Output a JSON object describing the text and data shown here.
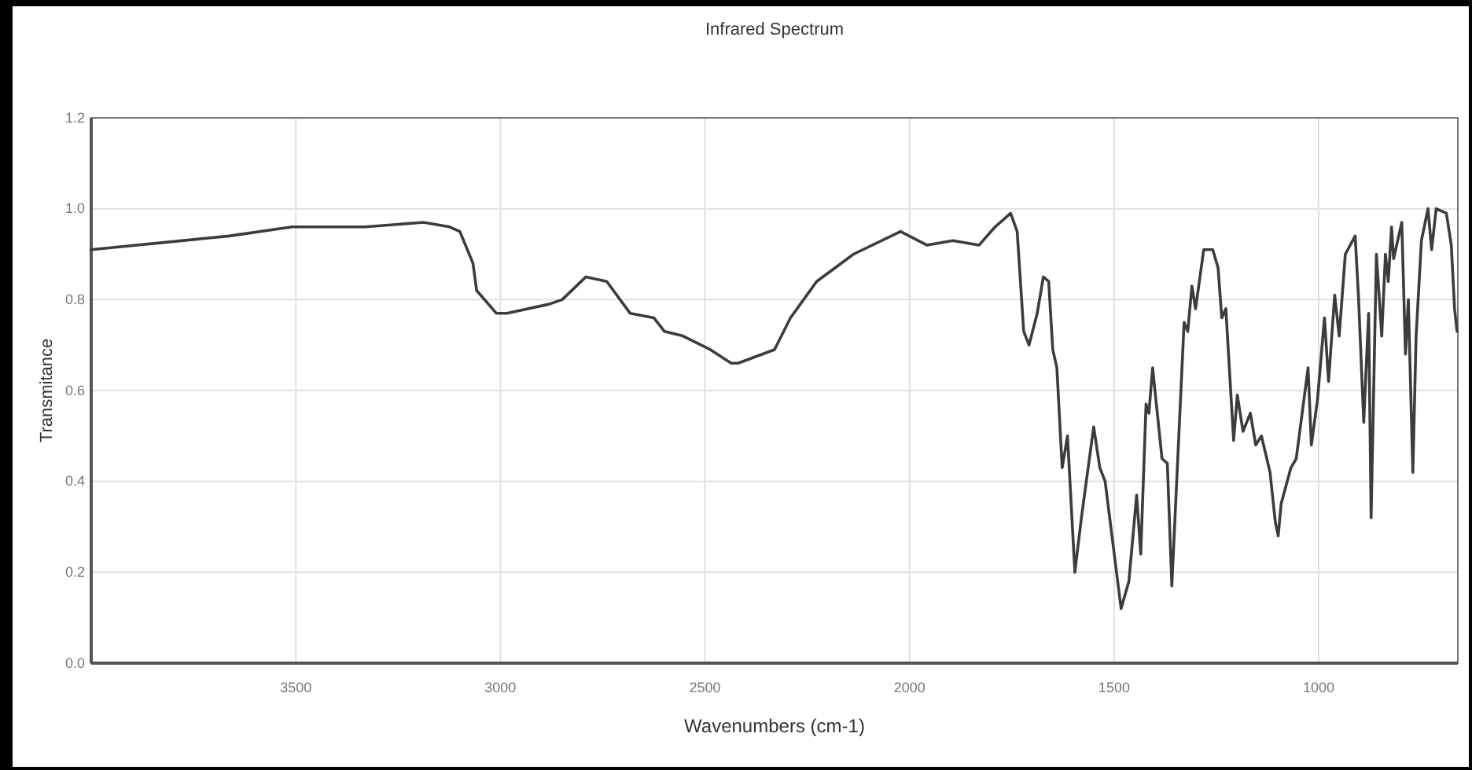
{
  "chart_data": {
    "type": "line",
    "title": "Infrared Spectrum",
    "xlabel": "Wavenumbers (cm-1)",
    "ylabel": "Transmitance",
    "xlim": [
      4000,
      660
    ],
    "xticks": [
      3500,
      3000,
      2500,
      2000,
      1500,
      1000
    ],
    "ylim": [
      0,
      1.2
    ],
    "yticks": [
      {
        "value": 0,
        "label": "0.0"
      },
      {
        "value": 0.2,
        "label": "0.2"
      },
      {
        "value": 0.4,
        "label": "0.4"
      },
      {
        "value": 0.6,
        "label": "0.6"
      },
      {
        "value": 0.8,
        "label": "0.8"
      },
      {
        "value": 1,
        "label": "1.0"
      },
      {
        "value": 1.2,
        "label": "1.2"
      }
    ],
    "grid": true,
    "marker": "none",
    "line_style": "solid",
    "series": [
      {
        "color": "#3c3c3c",
        "x": [
          4000,
          3663,
          3509,
          3331,
          3188,
          3124,
          3099,
          3067,
          3058,
          3010,
          2984,
          2881,
          2849,
          2791,
          2740,
          2683,
          2625,
          2599,
          2554,
          2487,
          2436,
          2419,
          2330,
          2291,
          2227,
          2137,
          2022,
          1958,
          1894,
          1830,
          1791,
          1753,
          1737,
          1721,
          1708,
          1688,
          1673,
          1660,
          1650,
          1640,
          1627,
          1614,
          1596,
          1580,
          1550,
          1535,
          1522,
          1483,
          1464,
          1445,
          1435,
          1422,
          1415,
          1406,
          1383,
          1370,
          1359,
          1329,
          1320,
          1310,
          1301,
          1281,
          1259,
          1246,
          1237,
          1227,
          1208,
          1199,
          1185,
          1167,
          1154,
          1140,
          1119,
          1106,
          1099,
          1092,
          1068,
          1055,
          1026,
          1018,
          1003,
          986,
          976,
          961,
          950,
          935,
          911,
          903,
          890,
          878,
          872,
          859,
          846,
          837,
          830,
          822,
          817,
          797,
          788,
          781,
          770,
          762,
          749,
          733,
          724,
          713,
          688,
          676,
          668,
          662
        ],
        "values": [
          0.91,
          0.94,
          0.96,
          0.96,
          0.97,
          0.96,
          0.95,
          0.88,
          0.82,
          0.77,
          0.77,
          0.79,
          0.8,
          0.85,
          0.84,
          0.77,
          0.76,
          0.73,
          0.72,
          0.69,
          0.66,
          0.66,
          0.69,
          0.76,
          0.84,
          0.9,
          0.95,
          0.92,
          0.93,
          0.92,
          0.96,
          0.99,
          0.95,
          0.73,
          0.7,
          0.77,
          0.85,
          0.84,
          0.69,
          0.65,
          0.43,
          0.5,
          0.2,
          0.32,
          0.52,
          0.43,
          0.4,
          0.12,
          0.18,
          0.37,
          0.24,
          0.57,
          0.55,
          0.65,
          0.45,
          0.44,
          0.17,
          0.75,
          0.73,
          0.83,
          0.78,
          0.91,
          0.91,
          0.87,
          0.76,
          0.78,
          0.49,
          0.59,
          0.51,
          0.55,
          0.48,
          0.5,
          0.42,
          0.31,
          0.28,
          0.35,
          0.43,
          0.45,
          0.65,
          0.48,
          0.58,
          0.76,
          0.62,
          0.81,
          0.72,
          0.9,
          0.94,
          0.81,
          0.53,
          0.77,
          0.32,
          0.9,
          0.72,
          0.9,
          0.84,
          0.96,
          0.89,
          0.97,
          0.68,
          0.8,
          0.42,
          0.72,
          0.93,
          1.0,
          0.91,
          1.0,
          0.99,
          0.92,
          0.78,
          0.73
        ]
      }
    ]
  }
}
